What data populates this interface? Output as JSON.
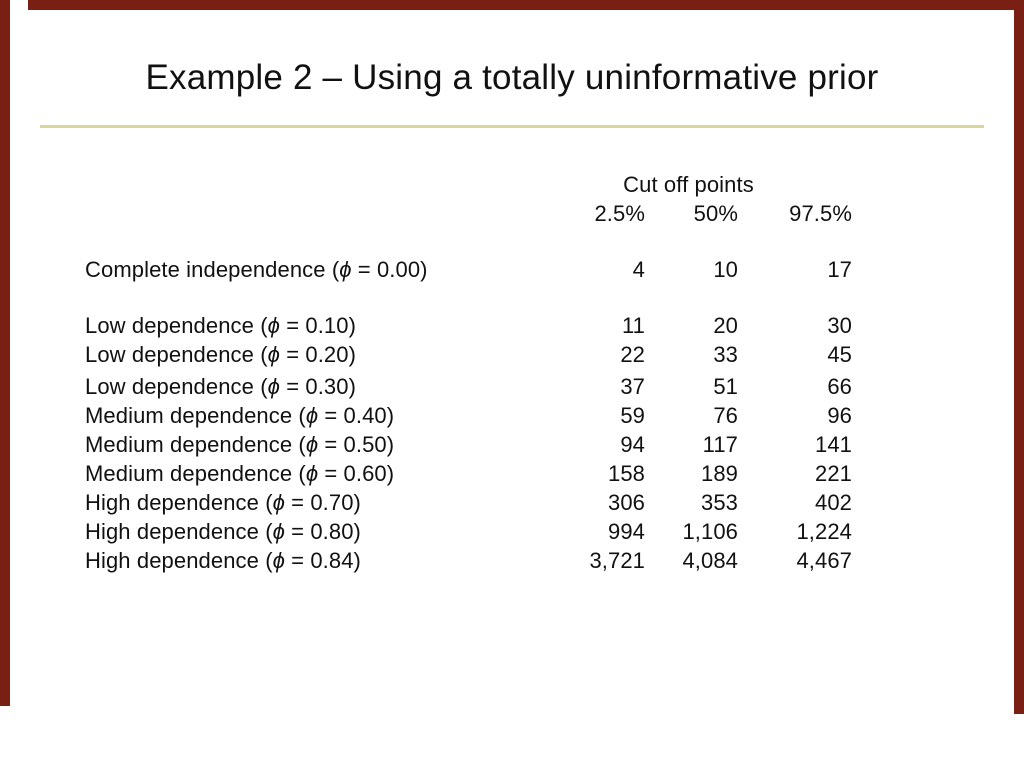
{
  "slide": {
    "title": "Example 2 – Using a totally uninformative prior",
    "frame_color": "#7a1f14",
    "rule_color": "#d8d79a",
    "text_color": "#111111",
    "background_color": "#ffffff"
  },
  "table": {
    "header": "Cut off points",
    "columns": [
      "2.5%",
      "50%",
      "97.5%"
    ],
    "phi_symbol": "ϕ",
    "label_format": {
      "open_paren": "(",
      "equals": " = ",
      "close_paren": ")"
    },
    "rows": [
      {
        "label": "Complete independence",
        "phi_value": "0.00",
        "values": [
          "4",
          "10",
          "17"
        ],
        "gap_before": "large"
      },
      {
        "label": "Low dependence",
        "phi_value": "0.10",
        "values": [
          "11",
          "20",
          "30"
        ],
        "gap_before": "large"
      },
      {
        "label": "Low dependence",
        "phi_value": "0.20",
        "values": [
          "22",
          "33",
          "45"
        ],
        "gap_before": "none"
      },
      {
        "label": "Low dependence",
        "phi_value": "0.30",
        "values": [
          "37",
          "51",
          "66"
        ],
        "gap_before": "small"
      },
      {
        "label": "Medium dependence",
        "phi_value": "0.40",
        "values": [
          "59",
          "76",
          "96"
        ],
        "gap_before": "none"
      },
      {
        "label": "Medium dependence",
        "phi_value": "0.50",
        "values": [
          "94",
          "117",
          "141"
        ],
        "gap_before": "none"
      },
      {
        "label": "Medium dependence",
        "phi_value": "0.60",
        "values": [
          "158",
          "189",
          "221"
        ],
        "gap_before": "none"
      },
      {
        "label": "High dependence",
        "phi_value": "0.70",
        "values": [
          "306",
          "353",
          "402"
        ],
        "gap_before": "none"
      },
      {
        "label": "High dependence",
        "phi_value": "0.80",
        "values": [
          "994",
          "1,106",
          "1,224"
        ],
        "gap_before": "none"
      },
      {
        "label": "High dependence",
        "phi_value": "0.84",
        "values": [
          "3,721",
          "4,084",
          "4,467"
        ],
        "gap_before": "none"
      }
    ]
  }
}
